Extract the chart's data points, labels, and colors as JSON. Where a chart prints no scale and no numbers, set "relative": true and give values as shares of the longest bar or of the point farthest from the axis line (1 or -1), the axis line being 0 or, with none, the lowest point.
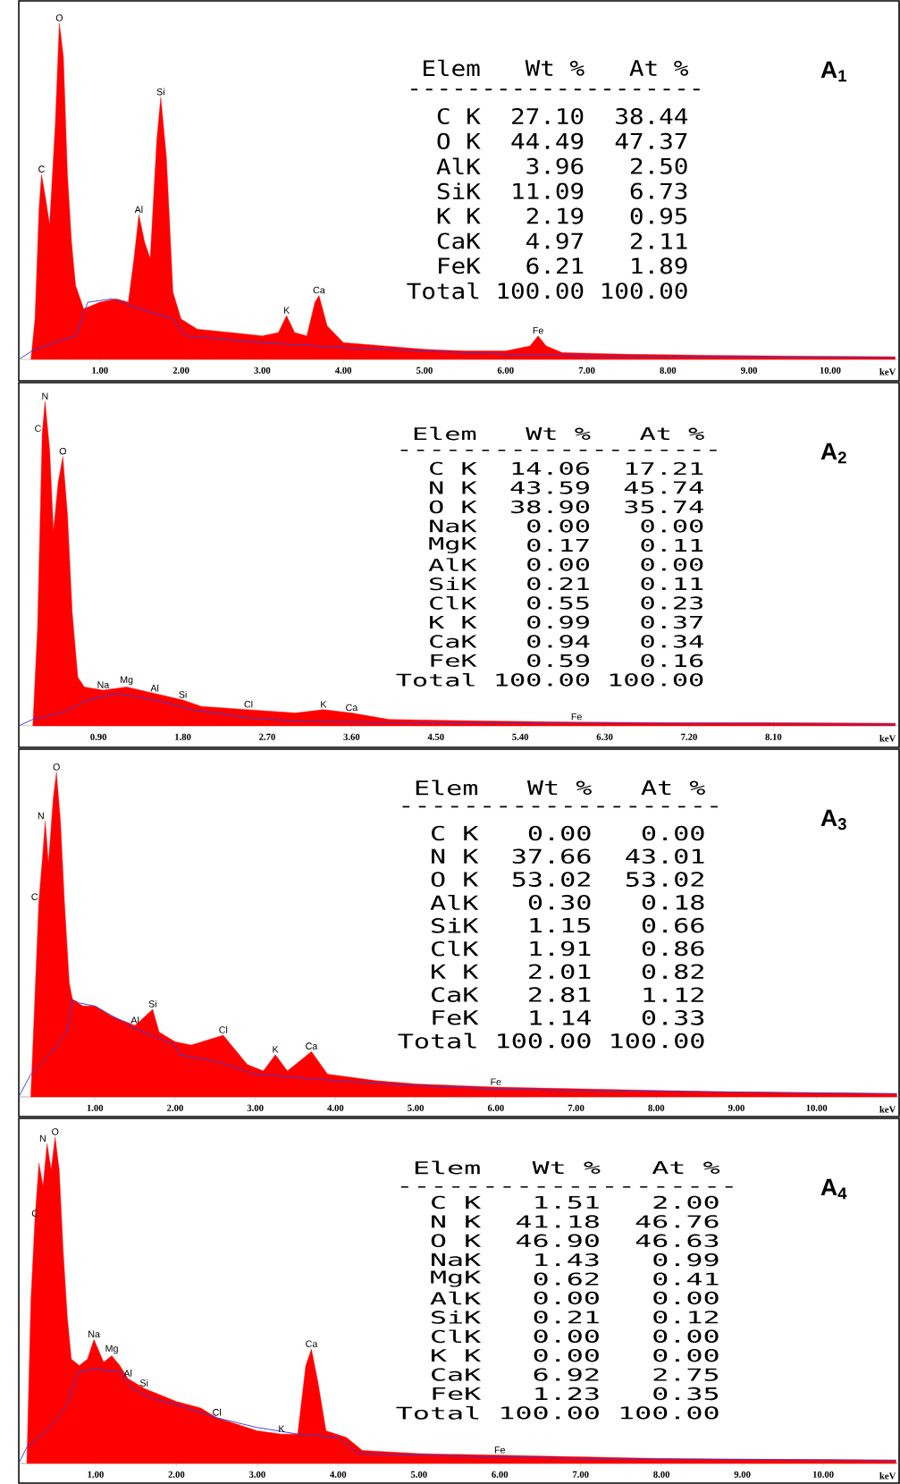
{
  "chart_data": [
    {
      "type": "area",
      "title": "A$_{1}$",
      "xlabel": "keV",
      "relative": true,
      "xlim": [
        0,
        10.86
      ],
      "xticks": [
        {
          "value": 1,
          "label": "1.00"
        },
        {
          "value": 2,
          "label": "2.00"
        },
        {
          "value": 3,
          "label": "3.00"
        },
        {
          "value": 4,
          "label": "4.00"
        },
        {
          "value": 5,
          "label": "5.00"
        },
        {
          "value": 6,
          "label": "6.00"
        },
        {
          "value": 7,
          "label": "7.00"
        },
        {
          "value": 8,
          "label": "8.00"
        },
        {
          "value": 9,
          "label": "9.00"
        },
        {
          "value": 10,
          "label": "10.00"
        }
      ],
      "series": [
        {
          "color": "#ff0000",
          "x": [
            0.15,
            0.2,
            0.25,
            0.28,
            0.33,
            0.38,
            0.45,
            0.5,
            0.55,
            0.6,
            0.65,
            0.7,
            0.8,
            1.0,
            1.2,
            1.35,
            1.42,
            1.48,
            1.55,
            1.62,
            1.7,
            1.75,
            1.82,
            1.9,
            2.0,
            2.2,
            2.6,
            3.0,
            3.2,
            3.3,
            3.4,
            3.55,
            3.65,
            3.7,
            3.8,
            4.0,
            4.5,
            5.0,
            5.5,
            6.0,
            6.3,
            6.4,
            6.5,
            6.7,
            7.5,
            8.5,
            9.5,
            10.8
          ],
          "values": [
            0,
            0.12,
            0.45,
            0.55,
            0.48,
            0.4,
            0.7,
            1.0,
            0.9,
            0.55,
            0.35,
            0.22,
            0.15,
            0.17,
            0.18,
            0.17,
            0.3,
            0.43,
            0.35,
            0.3,
            0.65,
            0.78,
            0.6,
            0.2,
            0.12,
            0.09,
            0.08,
            0.07,
            0.08,
            0.13,
            0.08,
            0.07,
            0.17,
            0.19,
            0.1,
            0.05,
            0.04,
            0.03,
            0.025,
            0.025,
            0.04,
            0.07,
            0.04,
            0.02,
            0.015,
            0.012,
            0.01,
            0.008
          ]
        },
        {
          "type": "line",
          "color": "#3a3ad6",
          "x": [
            0.0,
            0.2,
            0.7,
            0.85,
            1.15,
            1.5,
            1.9,
            2.05,
            3.0,
            4.0,
            5.0,
            6.0,
            7.0,
            10.8
          ],
          "values": [
            0,
            0.03,
            0.07,
            0.17,
            0.18,
            0.15,
            0.12,
            0.07,
            0.05,
            0.035,
            0.025,
            0.015,
            0.01,
            0.005
          ]
        }
      ],
      "annotations": [
        {
          "text": "C",
          "x": 0.28,
          "y": 0.55
        },
        {
          "text": "O",
          "x": 0.5,
          "y": 1.0
        },
        {
          "text": "Al",
          "x": 1.48,
          "y": 0.43
        },
        {
          "text": "Si",
          "x": 1.75,
          "y": 0.78
        },
        {
          "text": "K",
          "x": 3.3,
          "y": 0.13
        },
        {
          "text": "Ca",
          "x": 3.7,
          "y": 0.19
        },
        {
          "text": "Fe",
          "x": 6.4,
          "y": 0.07
        }
      ]
    },
    {
      "type": "other",
      "ylabel": "Elem",
      "categories": [
        "C K",
        "O K",
        "AlK",
        "SiK",
        "K K",
        "CaK",
        "FeK",
        "Total"
      ],
      "series": [
        {
          "name": "Wt %",
          "values": [
            27.1,
            44.49,
            3.96,
            11.09,
            2.19,
            4.97,
            6.21,
            100.0
          ],
          "value_labels": [
            "27.10",
            "44.49",
            "3.96",
            "11.09",
            "2.19",
            "4.97",
            "6.21",
            "100.00"
          ]
        },
        {
          "name": "At %",
          "values": [
            38.44,
            47.37,
            2.5,
            6.73,
            0.95,
            2.11,
            1.89,
            100.0
          ],
          "value_labels": [
            "38.44",
            "47.37",
            "2.50",
            "6.73",
            "0.95",
            "2.11",
            "1.89",
            "100.00"
          ]
        }
      ],
      "annotations": [
        "--------------------"
      ]
    },
    {
      "type": "area",
      "title": "A$_{2}$",
      "xlabel": "keV",
      "relative": true,
      "xlim": [
        0.05,
        9.45
      ],
      "xticks": [
        {
          "value": 0.9,
          "label": "0.90"
        },
        {
          "value": 1.8,
          "label": "1.80"
        },
        {
          "value": 2.7,
          "label": "2.70"
        },
        {
          "value": 3.6,
          "label": "3.60"
        },
        {
          "value": 4.5,
          "label": "4.50"
        },
        {
          "value": 5.4,
          "label": "5.40"
        },
        {
          "value": 6.3,
          "label": "6.30"
        },
        {
          "value": 7.2,
          "label": "7.20"
        },
        {
          "value": 8.1,
          "label": "8.10"
        }
      ],
      "series": [
        {
          "color": "#ff0000",
          "x": [
            0.2,
            0.25,
            0.3,
            0.33,
            0.38,
            0.42,
            0.47,
            0.52,
            0.57,
            0.62,
            0.68,
            0.75,
            0.95,
            1.2,
            1.5,
            1.8,
            2.0,
            2.5,
            3.0,
            3.3,
            3.6,
            4.0,
            5.0,
            6.0,
            7.0,
            8.0,
            9.4
          ],
          "values": [
            0,
            0.3,
            0.9,
            1.0,
            0.85,
            0.6,
            0.75,
            0.83,
            0.65,
            0.35,
            0.15,
            0.12,
            0.11,
            0.12,
            0.1,
            0.08,
            0.06,
            0.05,
            0.04,
            0.05,
            0.04,
            0.02,
            0.015,
            0.012,
            0.01,
            0.01,
            0.008
          ]
        },
        {
          "type": "line",
          "color": "#3a3ad6",
          "x": [
            0.05,
            0.2,
            0.5,
            0.8,
            1.1,
            1.5,
            1.9,
            2.5,
            3.0,
            4.0,
            9.4
          ],
          "values": [
            0,
            0.02,
            0.04,
            0.08,
            0.1,
            0.08,
            0.05,
            0.025,
            0.015,
            0.01,
            0.005
          ]
        }
      ],
      "annotations": [
        {
          "text": "C",
          "x": 0.3,
          "y": 0.9
        },
        {
          "text": "N",
          "x": 0.33,
          "y": 1.0
        },
        {
          "text": "O",
          "x": 0.52,
          "y": 0.83
        },
        {
          "text": "Na",
          "x": 0.95,
          "y": 0.11
        },
        {
          "text": "Mg",
          "x": 1.2,
          "y": 0.12
        },
        {
          "text": "Al",
          "x": 1.5,
          "y": 0.1
        },
        {
          "text": "Si",
          "x": 1.8,
          "y": 0.08
        },
        {
          "text": "Cl",
          "x": 2.5,
          "y": 0.05
        },
        {
          "text": "K",
          "x": 3.3,
          "y": 0.05
        },
        {
          "text": "Ca",
          "x": 3.6,
          "y": 0.04
        },
        {
          "text": "Fe",
          "x": 6.0,
          "y": 0.012
        }
      ]
    },
    {
      "type": "other",
      "ylabel": "Elem",
      "categories": [
        "C K",
        "N K",
        "O K",
        "NaK",
        "MgK",
        "AlK",
        "SiK",
        "ClK",
        "K K",
        "CaK",
        "FeK",
        "Total"
      ],
      "series": [
        {
          "name": "Wt %",
          "values": [
            14.06,
            43.59,
            38.9,
            0.0,
            0.17,
            0.0,
            0.21,
            0.55,
            0.99,
            0.94,
            0.59,
            100.0
          ],
          "value_labels": [
            "14.06",
            "43.59",
            "38.90",
            "0.00",
            "0.17",
            "0.00",
            "0.21",
            "0.55",
            "0.99",
            "0.94",
            "0.59",
            "100.00"
          ]
        },
        {
          "name": "At %",
          "values": [
            17.21,
            45.74,
            35.74,
            0.0,
            0.11,
            0.0,
            0.11,
            0.23,
            0.37,
            0.34,
            0.16,
            100.0
          ],
          "value_labels": [
            "17.21",
            "45.74",
            "35.74",
            "0.00",
            "0.11",
            "0.00",
            "0.11",
            "0.23",
            "0.37",
            "0.34",
            "0.16",
            "100.00"
          ]
        }
      ],
      "annotations": [
        "--------------------"
      ]
    },
    {
      "type": "area",
      "title": "A$_{3}$",
      "xlabel": "keV",
      "relative": true,
      "xlim": [
        0.05,
        11.04
      ],
      "xticks": [
        {
          "value": 1,
          "label": "1.00"
        },
        {
          "value": 2,
          "label": "2.00"
        },
        {
          "value": 3,
          "label": "3.00"
        },
        {
          "value": 4,
          "label": "4.00"
        },
        {
          "value": 5,
          "label": "5.00"
        },
        {
          "value": 6,
          "label": "6.00"
        },
        {
          "value": 7,
          "label": "7.00"
        },
        {
          "value": 8,
          "label": "8.00"
        },
        {
          "value": 9,
          "label": "9.00"
        },
        {
          "value": 10,
          "label": "10.00"
        }
      ],
      "series": [
        {
          "color": "#ff0000",
          "x": [
            0.2,
            0.25,
            0.3,
            0.35,
            0.38,
            0.42,
            0.48,
            0.52,
            0.57,
            0.62,
            0.68,
            0.72,
            0.85,
            1.0,
            1.2,
            1.5,
            1.72,
            1.8,
            2.0,
            2.2,
            2.6,
            2.7,
            2.9,
            3.1,
            3.25,
            3.4,
            3.7,
            3.9,
            4.5,
            5.0,
            6.0,
            7.0,
            8.0,
            9.0,
            11.0
          ],
          "values": [
            0,
            0.3,
            0.6,
            0.75,
            0.85,
            0.72,
            0.92,
            1.0,
            0.85,
            0.6,
            0.35,
            0.3,
            0.28,
            0.28,
            0.25,
            0.22,
            0.27,
            0.2,
            0.17,
            0.16,
            0.19,
            0.16,
            0.1,
            0.08,
            0.13,
            0.08,
            0.14,
            0.07,
            0.05,
            0.04,
            0.03,
            0.025,
            0.02,
            0.015,
            0.01
          ]
        },
        {
          "type": "line",
          "color": "#3a3ad6",
          "x": [
            0.05,
            0.2,
            0.4,
            0.65,
            0.72,
            0.8,
            1.0,
            1.5,
            2.0,
            2.05,
            2.5,
            3.0,
            4.0,
            5.0,
            6.0,
            7.0,
            11.0
          ],
          "values": [
            0,
            0.07,
            0.12,
            0.2,
            0.3,
            0.29,
            0.28,
            0.21,
            0.16,
            0.13,
            0.11,
            0.07,
            0.05,
            0.035,
            0.025,
            0.02,
            0.01
          ]
        }
      ],
      "annotations": [
        {
          "text": "C",
          "x": 0.3,
          "y": 0.6
        },
        {
          "text": "N",
          "x": 0.38,
          "y": 0.85
        },
        {
          "text": "O",
          "x": 0.52,
          "y": 1.0
        },
        {
          "text": "Al",
          "x": 1.5,
          "y": 0.22
        },
        {
          "text": "Si",
          "x": 1.72,
          "y": 0.27
        },
        {
          "text": "Cl",
          "x": 2.6,
          "y": 0.19
        },
        {
          "text": "K",
          "x": 3.25,
          "y": 0.13
        },
        {
          "text": "Ca",
          "x": 3.7,
          "y": 0.14
        },
        {
          "text": "Fe",
          "x": 6.0,
          "y": 0.03
        }
      ]
    },
    {
      "type": "other",
      "ylabel": "Elem",
      "categories": [
        "C K",
        "N K",
        "O K",
        "AlK",
        "SiK",
        "ClK",
        "K K",
        "CaK",
        "FeK",
        "Total"
      ],
      "series": [
        {
          "name": "Wt %",
          "values": [
            0.0,
            37.66,
            53.02,
            0.3,
            1.15,
            1.91,
            2.01,
            2.81,
            1.14,
            100.0
          ],
          "value_labels": [
            "0.00",
            "37.66",
            "53.02",
            "0.30",
            "1.15",
            "1.91",
            "2.01",
            "2.81",
            "1.14",
            "100.00"
          ]
        },
        {
          "name": "At %",
          "values": [
            0.0,
            43.01,
            53.02,
            0.18,
            0.66,
            0.86,
            0.82,
            1.12,
            0.33,
            100.0
          ],
          "value_labels": [
            "0.00",
            "43.01",
            "53.02",
            "0.18",
            "0.66",
            "0.86",
            "0.82",
            "1.12",
            "0.33",
            "100.00"
          ]
        }
      ],
      "annotations": [
        "--------------------"
      ]
    },
    {
      "type": "area",
      "title": "A$_{4}$",
      "xlabel": "keV",
      "relative": true,
      "xlim": [
        0.05,
        10.95
      ],
      "xticks": [
        {
          "value": 1,
          "label": "1.00"
        },
        {
          "value": 2,
          "label": "2.00"
        },
        {
          "value": 3,
          "label": "3.00"
        },
        {
          "value": 4,
          "label": "4.00"
        },
        {
          "value": 5,
          "label": "5.00"
        },
        {
          "value": 6,
          "label": "6.00"
        },
        {
          "value": 7,
          "label": "7.00"
        },
        {
          "value": 8,
          "label": "8.00"
        },
        {
          "value": 9,
          "label": "9.00"
        },
        {
          "value": 10,
          "label": "10.00"
        }
      ],
      "series": [
        {
          "color": "#ff0000",
          "x": [
            0.15,
            0.2,
            0.25,
            0.3,
            0.35,
            0.4,
            0.45,
            0.5,
            0.55,
            0.6,
            0.65,
            0.7,
            0.8,
            0.9,
            0.98,
            1.1,
            1.2,
            1.3,
            1.4,
            1.6,
            2.0,
            2.3,
            2.5,
            3.0,
            3.3,
            3.5,
            3.6,
            3.67,
            3.75,
            3.85,
            4.1,
            4.3,
            5.0,
            6.0,
            7.0,
            8.0,
            10.9
          ],
          "values": [
            0,
            0.5,
            0.75,
            0.92,
            0.85,
            0.98,
            0.9,
            1.0,
            0.9,
            0.65,
            0.45,
            0.32,
            0.3,
            0.32,
            0.38,
            0.31,
            0.33,
            0.3,
            0.26,
            0.23,
            0.19,
            0.17,
            0.14,
            0.1,
            0.09,
            0.09,
            0.3,
            0.35,
            0.25,
            0.1,
            0.08,
            0.04,
            0.03,
            0.025,
            0.02,
            0.015,
            0.01
          ]
        },
        {
          "type": "line",
          "color": "#3a3ad6",
          "x": [
            0.05,
            0.15,
            0.4,
            0.65,
            0.78,
            1.0,
            1.3,
            1.45,
            1.7,
            2.0,
            2.5,
            3.0,
            3.5,
            4.0,
            4.25,
            5.0,
            6.0,
            7.0,
            10.9
          ],
          "values": [
            0,
            0.05,
            0.1,
            0.18,
            0.28,
            0.29,
            0.28,
            0.23,
            0.2,
            0.18,
            0.14,
            0.11,
            0.09,
            0.08,
            0.03,
            0.025,
            0.02,
            0.015,
            0.01
          ]
        }
      ],
      "annotations": [
        {
          "text": "C",
          "x": 0.25,
          "y": 0.75
        },
        {
          "text": "N",
          "x": 0.4,
          "y": 0.98
        },
        {
          "text": "O",
          "x": 0.5,
          "y": 1.0
        },
        {
          "text": "Na",
          "x": 0.98,
          "y": 0.38
        },
        {
          "text": "Mg",
          "x": 1.2,
          "y": 0.33
        },
        {
          "text": "Al",
          "x": 1.4,
          "y": 0.26
        },
        {
          "text": "Si",
          "x": 1.6,
          "y": 0.23
        },
        {
          "text": "Cl",
          "x": 2.5,
          "y": 0.14
        },
        {
          "text": "K",
          "x": 3.3,
          "y": 0.09
        },
        {
          "text": "Ca",
          "x": 3.67,
          "y": 0.35
        },
        {
          "text": "Fe",
          "x": 6.0,
          "y": 0.025
        }
      ]
    },
    {
      "type": "other",
      "ylabel": "Elem",
      "categories": [
        "C K",
        "N K",
        "O K",
        "NaK",
        "MgK",
        "AlK",
        "SiK",
        "ClK",
        "K K",
        "CaK",
        "FeK",
        "Total"
      ],
      "series": [
        {
          "name": "Wt %",
          "values": [
            1.51,
            41.18,
            46.9,
            1.43,
            0.62,
            0.0,
            0.21,
            0.0,
            0.0,
            6.92,
            1.23,
            100.0
          ],
          "value_labels": [
            "1.51",
            "41.18",
            "46.90",
            "1.43",
            "0.62",
            "0.00",
            "0.21",
            "0.00",
            "0.00",
            "6.92",
            "1.23",
            "100.00"
          ]
        },
        {
          "name": "At %",
          "values": [
            2.0,
            46.76,
            46.63,
            0.99,
            0.41,
            0.0,
            0.12,
            0.0,
            0.0,
            2.75,
            0.35,
            100.0
          ],
          "value_labels": [
            "2.00",
            "46.76",
            "46.63",
            "0.99",
            "0.41",
            "0.00",
            "0.12",
            "0.00",
            "0.00",
            "2.75",
            "0.35",
            "100.00"
          ]
        }
      ],
      "annotations": [
        "--------------------"
      ]
    }
  ]
}
